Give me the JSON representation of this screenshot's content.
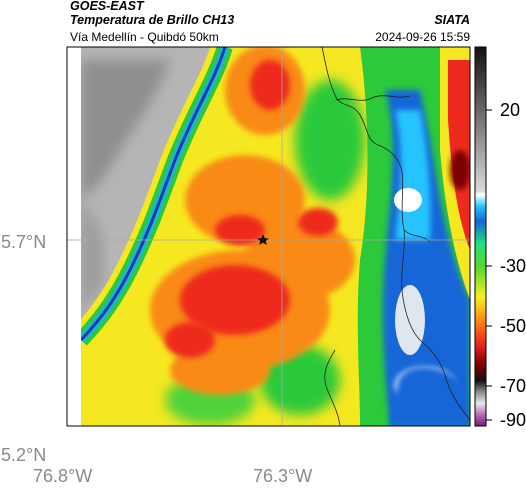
{
  "header": {
    "satellite": "GOES-EAST",
    "product": "Temperatura de Brillo CH13",
    "region": "Vía Medellín - Quibdó 50km",
    "agency": "SIATA",
    "timestamp": "2024-09-26 15:59"
  },
  "map": {
    "lat_ticks": [
      "5.7°N",
      "5.2°N"
    ],
    "lon_ticks": [
      "76.8°W",
      "76.3°W"
    ],
    "marker_icon": "star-icon",
    "colors": {
      "cold_tops": "#ee2a1e",
      "cloud_orange": "#f98a14",
      "cloud_yellow": "#f6e820",
      "cloud_green": "#2cc93a",
      "warm_gray": "#b4b4b4",
      "blue_edge": "#1a3db0"
    }
  },
  "colorbar": {
    "ticks": [
      "20",
      "-30",
      "-50",
      "-70",
      "-90"
    ]
  }
}
